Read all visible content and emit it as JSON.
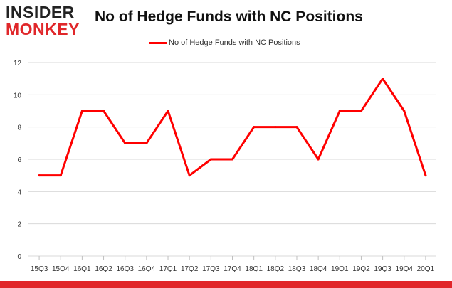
{
  "logo": {
    "line1": "INSIDER",
    "line2": "MONKEY"
  },
  "colors": {
    "series": "#ff0000",
    "grid": "#d9d9d9",
    "axis_text": "#333333",
    "brand": "#e1262a"
  },
  "chart_data": {
    "type": "line",
    "title": "No of Hedge Funds with NC Positions",
    "xlabel": "",
    "ylabel": "",
    "categories": [
      "15Q3",
      "15Q4",
      "16Q1",
      "16Q2",
      "16Q3",
      "16Q4",
      "17Q1",
      "17Q2",
      "17Q3",
      "17Q4",
      "18Q1",
      "18Q2",
      "18Q3",
      "18Q4",
      "19Q1",
      "19Q2",
      "19Q3",
      "19Q4",
      "20Q1"
    ],
    "series": [
      {
        "name": "No of Hedge Funds with NC Positions",
        "values": [
          5,
          5,
          9,
          9,
          7,
          7,
          9,
          5,
          6,
          6,
          8,
          8,
          8,
          6,
          9,
          9,
          11,
          9,
          5
        ]
      }
    ],
    "ylim": [
      0,
      12
    ],
    "yticks": [
      0,
      2,
      4,
      6,
      8,
      10,
      12
    ],
    "grid": "horizontal",
    "legend": "top-center"
  }
}
